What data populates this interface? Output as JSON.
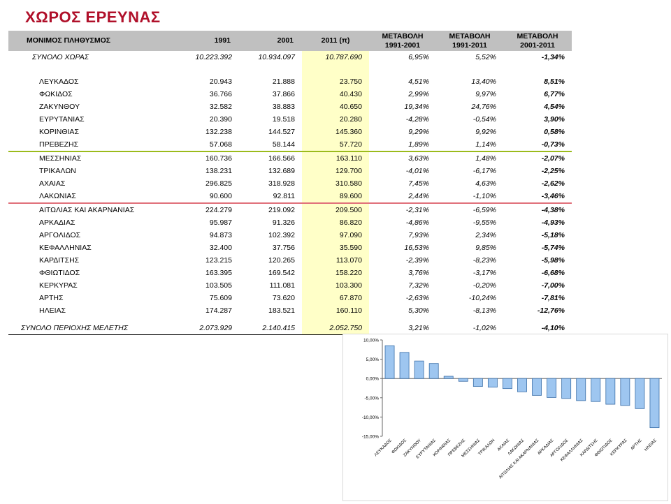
{
  "title": "ΧΩΡΟΣ ΕΡΕΥΝΑΣ",
  "table": {
    "headers": {
      "name": "ΜΟΝΙΜΟΣ ΠΛΗΘΥΣΜΟΣ",
      "y1991": "1991",
      "y2001": "2001",
      "y2011": "2011 (π)",
      "c1_l1": "ΜΕΤΑΒΟΛΗ",
      "c1_l2": "1991-2001",
      "c2_l1": "ΜΕΤΑΒΟΛΗ",
      "c2_l2": "1991-2011",
      "c3_l1": "ΜΕΤΑΒΟΛΗ",
      "c3_l2": "2001-2011"
    },
    "total": {
      "name": "ΣΥΝΟΛΟ ΧΩΡΑΣ",
      "y1991": "10.223.392",
      "y2001": "10.934.097",
      "y2011": "10.787.690",
      "c1": "6,95%",
      "c2": "5,52%",
      "c3": "-1,34%"
    },
    "rows": [
      {
        "name": "ΛΕΥΚΑΔΟΣ",
        "y1991": "20.943",
        "y2001": "21.888",
        "y2011": "23.750",
        "c1": "4,51%",
        "c2": "13,40%",
        "c3": "8,51%"
      },
      {
        "name": "ΦΩΚΙΔΟΣ",
        "y1991": "36.766",
        "y2001": "37.866",
        "y2011": "40.430",
        "c1": "2,99%",
        "c2": "9,97%",
        "c3": "6,77%"
      },
      {
        "name": "ΖΑΚΥΝΘΟΥ",
        "y1991": "32.582",
        "y2001": "38.883",
        "y2011": "40.650",
        "c1": "19,34%",
        "c2": "24,76%",
        "c3": "4,54%"
      },
      {
        "name": "ΕΥΡΥΤΑΝΙΑΣ",
        "y1991": "20.390",
        "y2001": "19.518",
        "y2011": "20.280",
        "c1": "-4,28%",
        "c2": "-0,54%",
        "c3": "3,90%"
      },
      {
        "name": "ΚΟΡΙΝΘΙΑΣ",
        "y1991": "132.238",
        "y2001": "144.527",
        "y2011": "145.360",
        "c1": "9,29%",
        "c2": "9,92%",
        "c3": "0,58%"
      },
      {
        "name": "ΠΡΕΒΕΖΗΣ",
        "y1991": "57.068",
        "y2001": "58.144",
        "y2011": "57.720",
        "c1": "1,89%",
        "c2": "1,14%",
        "c3": "-0,73%"
      },
      {
        "name": "ΜΕΣΣΗΝΙΑΣ",
        "y1991": "160.736",
        "y2001": "166.566",
        "y2011": "163.110",
        "c1": "3,63%",
        "c2": "1,48%",
        "c3": "-2,07%"
      },
      {
        "name": "ΤΡΙΚΑΛΩΝ",
        "y1991": "138.231",
        "y2001": "132.689",
        "y2011": "129.700",
        "c1": "-4,01%",
        "c2": "-6,17%",
        "c3": "-2,25%"
      },
      {
        "name": "ΑΧΑΙΑΣ",
        "y1991": "296.825",
        "y2001": "318.928",
        "y2011": "310.580",
        "c1": "7,45%",
        "c2": "4,63%",
        "c3": "-2,62%"
      },
      {
        "name": "ΛΑΚΩΝΙΑΣ",
        "y1991": "90.600",
        "y2001": "92.811",
        "y2011": "89.600",
        "c1": "2,44%",
        "c2": "-1,10%",
        "c3": "-3,46%"
      },
      {
        "name": "ΑΙΤΩΛΙΑΣ ΚΑΙ ΑΚΑΡΝΑΝΙΑΣ",
        "y1991": "224.279",
        "y2001": "219.092",
        "y2011": "209.500",
        "c1": "-2,31%",
        "c2": "-6,59%",
        "c3": "-4,38%"
      },
      {
        "name": "ΑΡΚΑΔΙΑΣ",
        "y1991": "95.987",
        "y2001": "91.326",
        "y2011": "86.820",
        "c1": "-4,86%",
        "c2": "-9,55%",
        "c3": "-4,93%"
      },
      {
        "name": "ΑΡΓΟΛΙΔΟΣ",
        "y1991": "94.873",
        "y2001": "102.392",
        "y2011": "97.090",
        "c1": "7,93%",
        "c2": "2,34%",
        "c3": "-5,18%"
      },
      {
        "name": "ΚΕΦΑΛΛΗΝΙΑΣ",
        "y1991": "32.400",
        "y2001": "37.756",
        "y2011": "35.590",
        "c1": "16,53%",
        "c2": "9,85%",
        "c3": "-5,74%"
      },
      {
        "name": "ΚΑΡΔΙΤΣΗΣ",
        "y1991": "123.215",
        "y2001": "120.265",
        "y2011": "113.070",
        "c1": "-2,39%",
        "c2": "-8,23%",
        "c3": "-5,98%"
      },
      {
        "name": "ΦΘΙΩΤΙΔΟΣ",
        "y1991": "163.395",
        "y2001": "169.542",
        "y2011": "158.220",
        "c1": "3,76%",
        "c2": "-3,17%",
        "c3": "-6,68%"
      },
      {
        "name": "ΚΕΡΚΥΡΑΣ",
        "y1991": "103.505",
        "y2001": "111.081",
        "y2011": "103.300",
        "c1": "7,32%",
        "c2": "-0,20%",
        "c3": "-7,00%"
      },
      {
        "name": "ΑΡΤΗΣ",
        "y1991": "75.609",
        "y2001": "73.620",
        "y2011": "67.870",
        "c1": "-2,63%",
        "c2": "-10,24%",
        "c3": "-7,81%"
      },
      {
        "name": "ΗΛΕΙΑΣ",
        "y1991": "174.287",
        "y2001": "183.521",
        "y2011": "160.110",
        "c1": "5,30%",
        "c2": "-8,13%",
        "c3": "-12,76%"
      }
    ],
    "region_total": {
      "name": "ΣΥΝΟΛΟ ΠΕΡΙΟΧΗΣ ΜΕΛΕΤΗΣ",
      "y1991": "2.073.929",
      "y2001": "2.140.415",
      "y2011": "2.052.750",
      "c1": "3,21%",
      "c2": "-1,02%",
      "c3": "-4,10%"
    }
  },
  "colors": {
    "title": "#b0102a",
    "header_bg": "#c0c0c0",
    "highlight": "#ffffc8",
    "sep_green": "#9bbb1c",
    "sep_red": "#e0707a",
    "bar_fill": "#9ec6f0",
    "bar_stroke": "#3b6fa8"
  },
  "chart_data": {
    "type": "bar",
    "categories": [
      "ΛΕΥΚΑΔΟΣ",
      "ΦΩΚΙΔΟΣ",
      "ΖΑΚΥΝΘΟΥ",
      "ΕΥΡΥΤΑΝΙΑΣ",
      "ΚΟΡΙΝΘΙΑΣ",
      "ΠΡΕΒΕΖΗΣ",
      "ΜΕΣΣΗΝΙΑΣ",
      "ΤΡΙΚΑΛΩΝ",
      "ΑΧΑΙΑΣ",
      "ΛΑΚΩΝΙΑΣ",
      "ΑΙΤΩΛΙΑΣ ΚΑΙ ΑΚΑΡΝΑΝΙΑΣ",
      "ΑΡΚΑΔΙΑΣ",
      "ΑΡΓΟΛΙΔΟΣ",
      "ΚΕΦΑΛΛΗΝΙΑΣ",
      "ΚΑΡΔΙΤΣΗΣ",
      "ΦΘΙΩΤΙΔΟΣ",
      "ΚΕΡΚΥΡΑΣ",
      "ΑΡΤΗΣ",
      "ΗΛΕΙΑΣ"
    ],
    "values": [
      8.51,
      6.77,
      4.54,
      3.9,
      0.58,
      -0.73,
      -2.07,
      -2.25,
      -2.62,
      -3.46,
      -4.38,
      -4.93,
      -5.18,
      -5.74,
      -5.98,
      -6.68,
      -7.0,
      -7.81,
      -12.76
    ],
    "ylim": [
      -15,
      10
    ],
    "yticks": [
      10,
      5,
      0,
      -5,
      -10,
      -15
    ],
    "ytick_labels": [
      "10,00%",
      "5,00%",
      "0,00%",
      "-5,00%",
      "-10,00%",
      "-15,00%"
    ],
    "title": "",
    "xlabel": "",
    "ylabel": "",
    "grid": false,
    "legend": false
  }
}
